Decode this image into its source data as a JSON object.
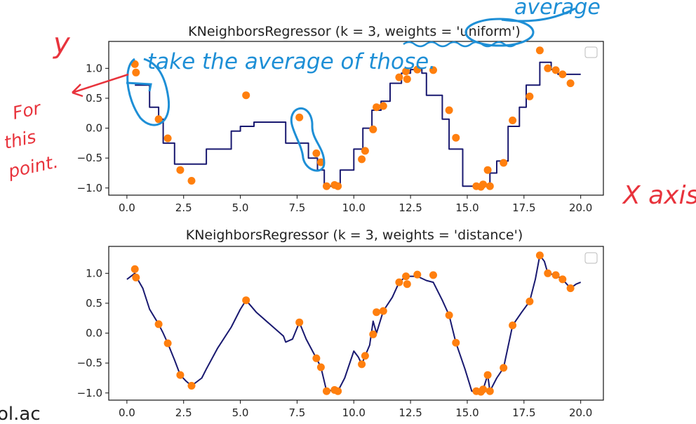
{
  "chart_data": [
    {
      "type": "scatter+line",
      "title": "KNeighborsRegressor (k = 3, weights = 'uniform')",
      "xlim": [
        -0.8,
        21
      ],
      "ylim": [
        -1.12,
        1.45
      ],
      "xticks": [
        0.0,
        2.5,
        5.0,
        7.5,
        10.0,
        12.5,
        15.0,
        17.5,
        20.0
      ],
      "xtick_labels": [
        "0.0",
        "2.5",
        "5.0",
        "7.5",
        "10.0",
        "12.5",
        "15.0",
        "17.5",
        "20.0"
      ],
      "yticks": [
        -1.0,
        -0.5,
        0.0,
        0.5,
        1.0
      ],
      "ytick_labels": [
        "−1.0",
        "−0.5",
        "0.0",
        "0.5",
        "1.0"
      ],
      "legend": "top-right (empty)",
      "points": {
        "color": "#ff7f0e",
        "x": [
          0.35,
          0.4,
          1.4,
          1.8,
          2.35,
          2.85,
          5.25,
          7.6,
          8.35,
          8.55,
          8.8,
          9.15,
          9.3,
          10.35,
          10.5,
          10.85,
          11.0,
          11.3,
          12.0,
          12.3,
          12.35,
          12.8,
          13.5,
          14.2,
          14.5,
          15.4,
          15.6,
          15.7,
          15.9,
          16.0,
          16.6,
          17.0,
          17.75,
          18.2,
          18.55,
          18.9,
          19.2,
          19.55
        ],
        "y": [
          1.07,
          0.93,
          0.15,
          -0.17,
          -0.7,
          -0.88,
          0.55,
          0.18,
          -0.42,
          -0.57,
          -0.97,
          -0.95,
          -0.97,
          -0.52,
          -0.38,
          -0.02,
          0.35,
          0.37,
          0.85,
          0.95,
          0.82,
          0.98,
          0.97,
          0.3,
          -0.16,
          -0.97,
          -0.98,
          -0.94,
          -0.7,
          -0.97,
          -0.58,
          0.13,
          0.53,
          1.3,
          1.0,
          0.97,
          0.9,
          0.75
        ]
      },
      "line": {
        "color": "#191970",
        "step": true,
        "x": [
          0.35,
          1.0,
          1.0,
          1.4,
          1.4,
          1.6,
          1.6,
          2.1,
          2.1,
          3.5,
          3.5,
          4.6,
          4.6,
          5.0,
          5.0,
          5.6,
          5.6,
          6.4,
          6.4,
          7.0,
          7.0,
          8.0,
          8.0,
          8.4,
          8.4,
          8.7,
          8.7,
          9.4,
          9.4,
          10.0,
          10.0,
          10.4,
          10.4,
          10.8,
          10.8,
          11.2,
          11.2,
          11.6,
          11.6,
          12.1,
          12.1,
          12.5,
          12.5,
          13.0,
          13.0,
          13.2,
          13.2,
          13.9,
          13.9,
          14.2,
          14.2,
          14.8,
          14.8,
          15.4,
          15.4,
          16.0,
          16.0,
          16.3,
          16.3,
          16.8,
          16.8,
          17.3,
          17.3,
          17.6,
          17.6,
          18.2,
          18.2,
          18.4,
          18.4,
          18.7,
          18.7,
          19.0,
          19.0,
          19.5,
          19.5,
          20.0
        ],
        "y": [
          0.72,
          0.72,
          0.35,
          0.35,
          0.15,
          0.15,
          -0.25,
          -0.25,
          -0.6,
          -0.6,
          -0.35,
          -0.35,
          -0.05,
          -0.05,
          0.03,
          0.03,
          0.1,
          0.1,
          0.1,
          0.1,
          -0.25,
          -0.25,
          -0.5,
          -0.5,
          -0.7,
          -0.7,
          -0.97,
          -0.97,
          -0.7,
          -0.7,
          -0.35,
          -0.35,
          0.0,
          0.0,
          0.3,
          0.3,
          0.45,
          0.45,
          0.75,
          0.75,
          0.92,
          0.92,
          0.98,
          0.98,
          0.92,
          0.92,
          0.55,
          0.55,
          0.15,
          0.15,
          -0.35,
          -0.35,
          -0.97,
          -0.97,
          -0.97,
          -0.97,
          -0.75,
          -0.75,
          -0.55,
          -0.55,
          0.03,
          0.03,
          0.35,
          0.35,
          0.72,
          0.72,
          1.1,
          1.1,
          1.1,
          1.1,
          0.98,
          0.98,
          0.9,
          0.9,
          0.9,
          0.9
        ]
      }
    },
    {
      "type": "scatter+line",
      "title": "KNeighborsRegressor (k = 3, weights = 'distance')",
      "xlim": [
        -0.8,
        21
      ],
      "ylim": [
        -1.12,
        1.45
      ],
      "xticks": [
        0.0,
        2.5,
        5.0,
        7.5,
        10.0,
        12.5,
        15.0,
        17.5,
        20.0
      ],
      "xtick_labels": [
        "0.0",
        "2.5",
        "5.0",
        "7.5",
        "10.0",
        "12.5",
        "15.0",
        "17.5",
        "20.0"
      ],
      "yticks": [
        -1.0,
        -0.5,
        0.0,
        0.5,
        1.0
      ],
      "ytick_labels": [
        "−1.0",
        "−0.5",
        "0.0",
        "0.5",
        "1.0"
      ],
      "legend": "top-right (empty)",
      "points": {
        "color": "#ff7f0e",
        "x": [
          0.35,
          0.4,
          1.4,
          1.8,
          2.35,
          2.85,
          5.25,
          7.6,
          8.35,
          8.55,
          8.8,
          9.15,
          9.3,
          10.35,
          10.5,
          10.85,
          11.0,
          11.3,
          12.0,
          12.3,
          12.35,
          12.8,
          13.5,
          14.2,
          14.5,
          15.4,
          15.6,
          15.7,
          15.9,
          16.0,
          16.6,
          17.0,
          17.75,
          18.2,
          18.55,
          18.9,
          19.2,
          19.55
        ],
        "y": [
          1.07,
          0.93,
          0.15,
          -0.17,
          -0.7,
          -0.88,
          0.55,
          0.18,
          -0.42,
          -0.57,
          -0.97,
          -0.95,
          -0.97,
          -0.52,
          -0.38,
          -0.02,
          0.35,
          0.37,
          0.85,
          0.95,
          0.82,
          0.98,
          0.97,
          0.3,
          -0.16,
          -0.97,
          -0.98,
          -0.94,
          -0.7,
          -0.97,
          -0.58,
          0.13,
          0.53,
          1.3,
          1.0,
          0.97,
          0.9,
          0.75
        ]
      },
      "line": {
        "color": "#191970",
        "step": false,
        "x": [
          0.0,
          0.35,
          0.4,
          0.7,
          1.0,
          1.4,
          1.6,
          1.8,
          2.1,
          2.35,
          2.6,
          2.85,
          3.3,
          3.5,
          4.0,
          4.6,
          5.0,
          5.25,
          5.7,
          6.3,
          6.9,
          7.0,
          7.3,
          7.6,
          7.9,
          8.35,
          8.55,
          8.8,
          9.15,
          9.3,
          9.6,
          10.0,
          10.2,
          10.35,
          10.5,
          10.7,
          10.85,
          11.0,
          11.3,
          11.7,
          12.0,
          12.3,
          12.8,
          13.2,
          13.5,
          13.9,
          14.2,
          14.5,
          14.9,
          15.2,
          15.4,
          15.6,
          15.7,
          15.9,
          16.0,
          16.3,
          16.6,
          17.0,
          17.4,
          17.75,
          18.0,
          18.2,
          18.4,
          18.55,
          18.9,
          19.2,
          19.55,
          19.8,
          20.0
        ],
        "y": [
          0.9,
          1.0,
          0.95,
          0.75,
          0.4,
          0.15,
          0.0,
          -0.17,
          -0.45,
          -0.7,
          -0.8,
          -0.88,
          -0.75,
          -0.6,
          -0.25,
          0.1,
          0.4,
          0.55,
          0.35,
          0.15,
          -0.05,
          -0.15,
          -0.1,
          0.18,
          -0.1,
          -0.42,
          -0.57,
          -0.97,
          -0.95,
          -0.97,
          -0.75,
          -0.3,
          -0.4,
          -0.52,
          -0.38,
          -0.2,
          0.2,
          0.0,
          0.37,
          0.6,
          0.85,
          0.95,
          0.95,
          0.88,
          0.85,
          0.55,
          0.3,
          -0.16,
          -0.6,
          -0.97,
          -0.97,
          -0.98,
          -0.94,
          -0.7,
          -0.97,
          -0.75,
          -0.58,
          0.13,
          0.35,
          0.53,
          0.9,
          1.3,
          1.2,
          1.0,
          0.97,
          0.9,
          0.75,
          0.82,
          0.85
        ]
      }
    }
  ],
  "annotations": {
    "average": "average",
    "take_average": "take the average of those.",
    "y_label": "y",
    "for_point_1": "For",
    "for_point_2": "this",
    "for_point_3": "point.",
    "x_axis": "X axis"
  },
  "edge_fragment": "ol.ac"
}
